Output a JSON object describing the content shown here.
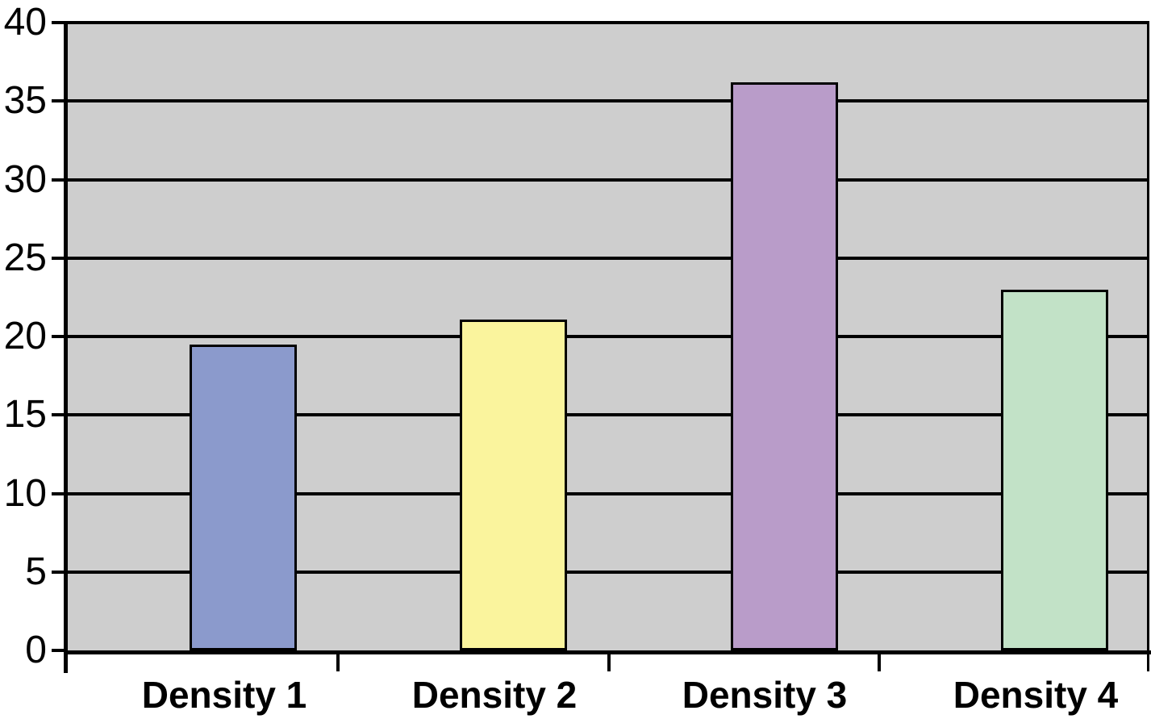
{
  "chart_data": {
    "type": "bar",
    "title": "",
    "xlabel": "",
    "ylabel": "",
    "categories": [
      "Density 1",
      "Density 2",
      "Density 3",
      "Density 4"
    ],
    "values": [
      19.5,
      21.1,
      36.2,
      23.0
    ],
    "bar_colors": [
      "#8B9ACC",
      "#FAF49D",
      "#B99CC9",
      "#C2E2C7"
    ],
    "yticks": [
      0,
      5,
      10,
      15,
      20,
      25,
      30,
      35,
      40
    ],
    "ytick_labels": [
      "0",
      "5",
      "10",
      "15",
      "20",
      "25",
      "30",
      "35",
      "40"
    ],
    "ylim": [
      0,
      40
    ],
    "grid": "horizontal",
    "legend": "none",
    "plot_bg_color": "#CECECE",
    "grid_color": "#000000",
    "axis_color": "#000000",
    "bar_border_color": "#000000",
    "x_label_style": "bold"
  }
}
